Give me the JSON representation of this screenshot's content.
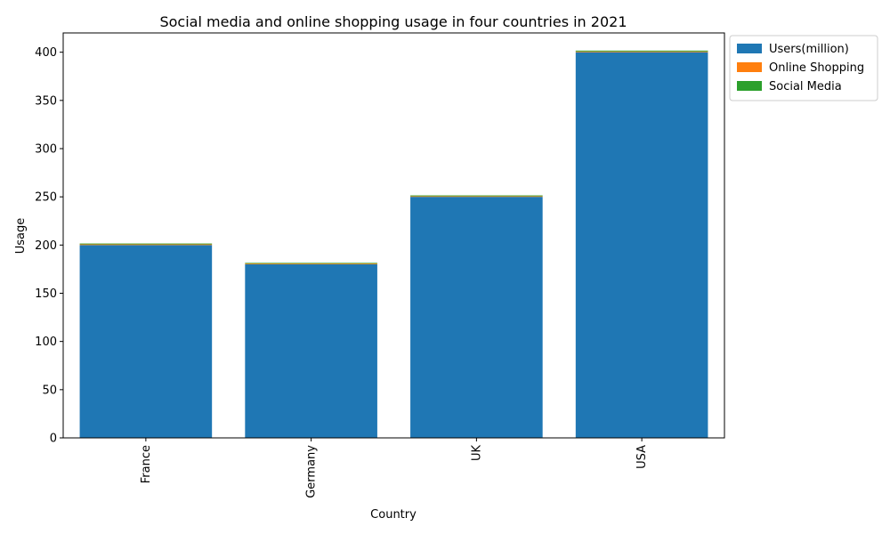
{
  "chart_data": {
    "type": "bar",
    "stacked": true,
    "title": "Social media and online shopping usage in four countries in 2021",
    "xlabel": "Country",
    "ylabel": "Usage",
    "categories": [
      "France",
      "Germany",
      "UK",
      "USA"
    ],
    "ylim": [
      0,
      420
    ],
    "yticks": [
      0,
      50,
      100,
      150,
      200,
      250,
      300,
      350,
      400
    ],
    "grid": false,
    "legend_position": "outside-top-right",
    "series": [
      {
        "name": "Users(million)",
        "color": "#1f77b4",
        "values": [
          200,
          180,
          250,
          400
        ]
      },
      {
        "name": "Online Shopping",
        "color": "#ff7f0e",
        "values": [
          0.8,
          0.8,
          0.7,
          0.8
        ]
      },
      {
        "name": "Social Media",
        "color": "#2ca02c",
        "values": [
          0.8,
          0.7,
          0.8,
          0.9
        ]
      }
    ]
  }
}
